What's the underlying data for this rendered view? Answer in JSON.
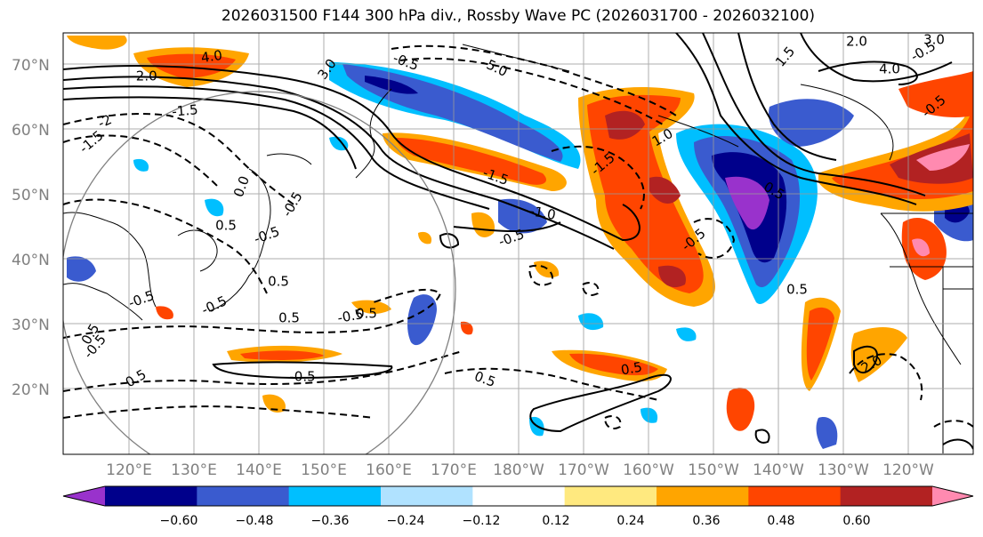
{
  "title": "2026031500 F144 300 hPa div., Rossby Wave PC (2026031700 - 2026032100)",
  "lat_labels": [
    "70°N",
    "60°N",
    "50°N",
    "40°N",
    "30°N",
    "20°N"
  ],
  "lon_labels": [
    "120°E",
    "130°E",
    "140°E",
    "150°E",
    "160°E",
    "170°E",
    "180°W",
    "170°W",
    "160°W",
    "150°W",
    "140°W",
    "130°W",
    "120°W"
  ],
  "colorbar": {
    "ticks": [
      "−0.60",
      "−0.48",
      "−0.36",
      "−0.24",
      "−0.12",
      "0.12",
      "0.24",
      "0.36",
      "0.48",
      "0.60"
    ],
    "colors": [
      "#9932CC",
      "#00008B",
      "#3A5BCF",
      "#00BFFF",
      "#B0E2FF",
      "#FFFFFF",
      "#FFE97F",
      "#FFA500",
      "#FF4500",
      "#B22222",
      "#FF8AB0"
    ]
  },
  "contour_labels": [
    "-2.0",
    "4.0",
    "3.0",
    "-0.5",
    "-5.0",
    "-1.5",
    "-2",
    "-1.5",
    "0.0",
    "-0.5",
    "-1.5",
    "-1.0",
    "-0.5",
    "0.5",
    "-0.5",
    "0.5",
    "-0.5",
    "-0.5",
    "0.5",
    "-0.5",
    "0.5",
    "0.5",
    "-0.5",
    "0.5",
    "-0.5",
    "0.5",
    "0.5",
    "0.5",
    "-0.5",
    "0.5",
    "1.5",
    "2.0",
    "4.0",
    "3.0",
    "-0.5",
    "-0.5",
    "-1.5",
    "1.0",
    "2.0"
  ]
}
